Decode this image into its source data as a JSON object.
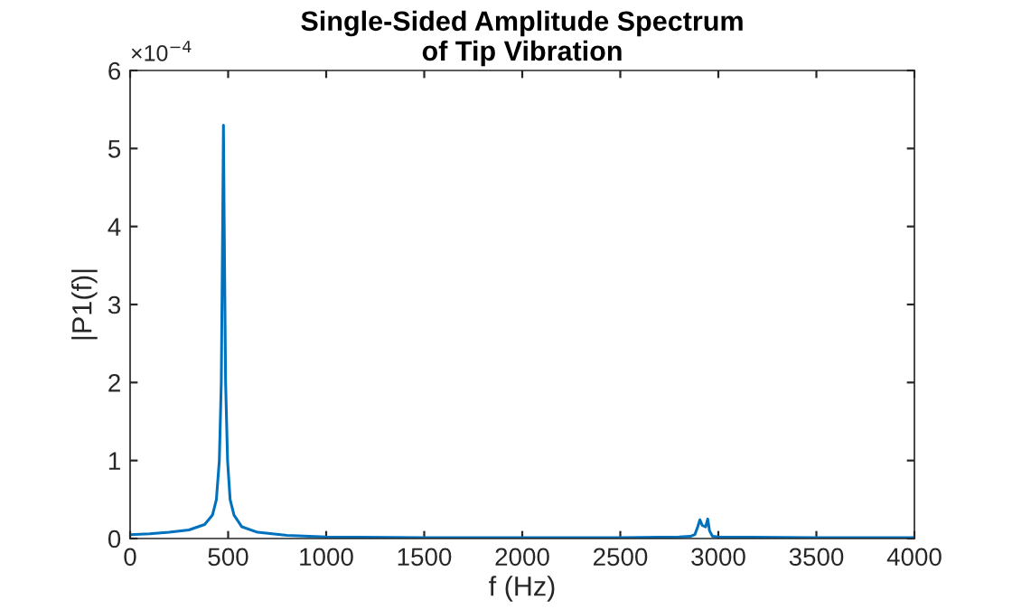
{
  "chart_data": {
    "type": "line",
    "title": "Single-Sided Amplitude Spectrum\nof Tip Vibration",
    "xlabel": "f (Hz)",
    "ylabel": "|P1(f)|",
    "annotations": [
      "×10$^{−4}$"
    ],
    "series": [
      {
        "color": "#0072bd",
        "x": [
          0,
          100,
          200,
          300,
          380,
          420,
          440,
          455,
          465,
          472,
          476,
          480,
          487,
          497,
          510,
          530,
          570,
          650,
          800,
          1000,
          1500,
          2000,
          2500,
          2800,
          2860,
          2880,
          2895,
          2906,
          2918,
          2935,
          2946,
          2955,
          2970,
          3000,
          3500,
          4000
        ],
        "values": [
          0.05,
          0.06,
          0.08,
          0.11,
          0.18,
          0.3,
          0.5,
          1.0,
          2.0,
          4.0,
          5.3,
          4.0,
          2.0,
          1.0,
          0.5,
          0.3,
          0.15,
          0.08,
          0.04,
          0.02,
          0.01,
          0.01,
          0.01,
          0.02,
          0.03,
          0.05,
          0.15,
          0.24,
          0.17,
          0.15,
          0.25,
          0.1,
          0.03,
          0.02,
          0.01,
          0.01
        ]
      }
    ],
    "xlim": [
      0,
      4000
    ],
    "xticks": [
      0,
      500,
      1000,
      1500,
      2000,
      2500,
      3000,
      3500,
      4000
    ],
    "ylim": [
      0,
      6
    ],
    "yticks": [
      0,
      1,
      2,
      3,
      4,
      5,
      6
    ],
    "grid": false,
    "marker": "none",
    "line_style": "solid"
  }
}
